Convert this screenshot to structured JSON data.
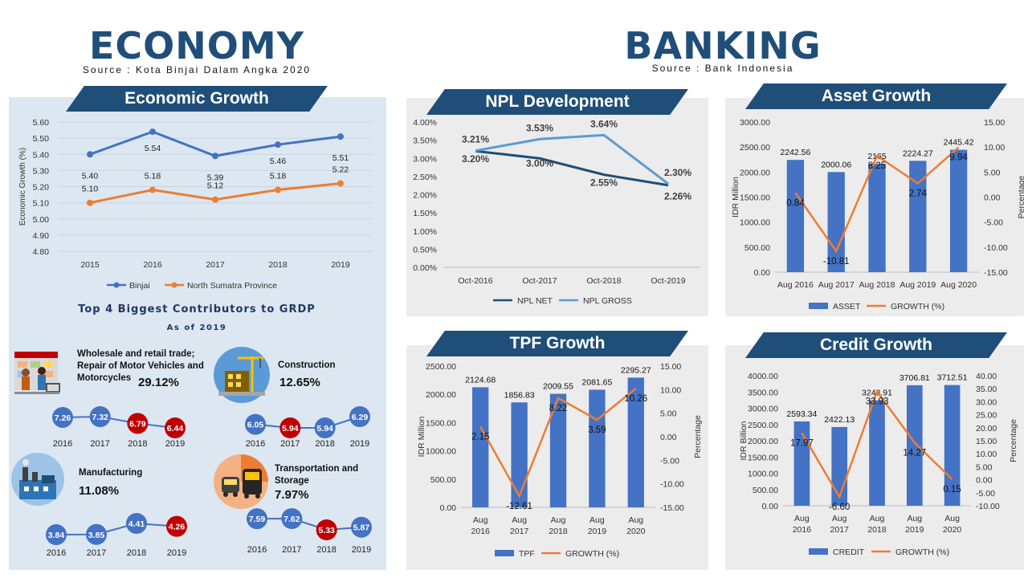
{
  "economy": {
    "title": "ECONOMY",
    "source": "Source : Kota Binjai Dalam Angka 2020"
  },
  "banking": {
    "title": "BANKING",
    "source": "Source : Bank Indonesia"
  },
  "banners": {
    "economic_growth": "Economic Growth",
    "npl": "NPL Development",
    "asset": "Asset Growth",
    "tpf": "TPF Growth",
    "credit": "Credit Growth"
  },
  "grdp": {
    "title": "Top 4 Biggest Contributors to GRDP",
    "subtitle": "As of 2019",
    "contributors": [
      {
        "name": "Wholesale and retail trade; Repair of Motor Vehicles and Motorcycles",
        "pct": "29.12%",
        "icon": "shop-icon",
        "years": [
          "2016",
          "2017",
          "2018",
          "2019"
        ],
        "values": [
          7.26,
          7.32,
          6.79,
          6.44
        ],
        "labels": [
          "7.26",
          "7.32",
          "6.79",
          "6.44"
        ],
        "colors": [
          "#4472c4",
          "#4472c4",
          "#c00000",
          "#c00000"
        ]
      },
      {
        "name": "Construction",
        "pct": "12.65%",
        "icon": "construction-icon",
        "years": [
          "2016",
          "2017",
          "2018",
          "2019"
        ],
        "values": [
          6.05,
          5.94,
          5.94,
          6.29
        ],
        "labels": [
          "6.05",
          "5.94",
          "5.94",
          "6.29"
        ],
        "colors": [
          "#4472c4",
          "#c00000",
          "#4472c4",
          "#4472c4"
        ]
      },
      {
        "name": "Manufacturing",
        "pct": "11.08%",
        "icon": "factory-icon",
        "years": [
          "2016",
          "2017",
          "2018",
          "2019"
        ],
        "values": [
          3.84,
          3.85,
          4.41,
          4.26
        ],
        "labels": [
          "3.84",
          "3.85",
          "4.41",
          "4.26"
        ],
        "colors": [
          "#4472c4",
          "#4472c4",
          "#4472c4",
          "#c00000"
        ]
      },
      {
        "name": "Transportation and Storage",
        "pct": "7.97%",
        "icon": "transport-icon",
        "years": [
          "2016",
          "2017",
          "2018",
          "2019"
        ],
        "values": [
          7.59,
          7.62,
          5.33,
          5.87
        ],
        "labels": [
          "7.59",
          "7.62",
          "5.33",
          "5.87"
        ],
        "colors": [
          "#4472c4",
          "#4472c4",
          "#c00000",
          "#4472c4"
        ]
      }
    ]
  },
  "colors": {
    "navy": "#1f4e79",
    "blue": "#4472c4",
    "orange": "#ed7d31",
    "red": "#c00000",
    "light_blue": "#5b9bd5"
  },
  "chart_data": [
    {
      "id": "economic-growth",
      "type": "line",
      "x": [
        "2015",
        "2016",
        "2017",
        "2018",
        "2019"
      ],
      "ylabel": "Economic Growth (%)",
      "ylim": [
        4.8,
        5.6
      ],
      "yticks": [
        "4.80",
        "4.90",
        "5.00",
        "5.10",
        "5.20",
        "5.30",
        "5.40",
        "5.50",
        "5.60"
      ],
      "series": [
        {
          "name": "Binjai",
          "values": [
            5.4,
            5.54,
            5.39,
            5.46,
            5.51
          ],
          "labels": [
            "5.40",
            "5.54",
            "5.39",
            "5.46",
            "5.51"
          ],
          "color": "#4472c4"
        },
        {
          "name": "North Sumatra Province",
          "values": [
            5.1,
            5.18,
            5.12,
            5.18,
            5.22
          ],
          "labels": [
            "5.10",
            "5.18",
            "5.12",
            "5.18",
            "5.22"
          ],
          "color": "#ed7d31"
        }
      ],
      "legend": "bottom",
      "grid": true
    },
    {
      "id": "npl",
      "type": "line",
      "x": [
        "Oct-2016",
        "Oct-2017",
        "Oct-2018",
        "Oct-2019"
      ],
      "ylim": [
        0,
        4
      ],
      "yticks": [
        "0.00%",
        "0.50%",
        "1.00%",
        "1.50%",
        "2.00%",
        "2.50%",
        "3.00%",
        "3.50%",
        "4.00%"
      ],
      "series": [
        {
          "name": "NPL NET",
          "values": [
            3.2,
            3.0,
            2.55,
            2.26
          ],
          "labels": [
            "3.20%",
            "3.00%",
            "2.55%",
            "2.26%"
          ],
          "color": "#1f4e79"
        },
        {
          "name": "NPL GROSS",
          "values": [
            3.21,
            3.53,
            3.64,
            2.3
          ],
          "labels": [
            "3.21%",
            "3.53%",
            "3.64%",
            "2.30%"
          ],
          "color": "#5b9bd5"
        }
      ],
      "legend": "bottom"
    },
    {
      "id": "asset",
      "type": "bar",
      "categories": [
        "Aug 2016",
        "Aug 2017",
        "Aug 2018",
        "Aug 2019",
        "Aug 2020"
      ],
      "ylabel": "IDR Million",
      "y2label": "Percentage",
      "ylim": [
        0,
        3000
      ],
      "y2lim": [
        -15,
        15
      ],
      "yticks": [
        "0.00",
        "500.00",
        "1000.00",
        "1500.00",
        "2000.00",
        "2500.00",
        "3000.00"
      ],
      "y2ticks": [
        "-15.00",
        "-10.00",
        "-5.00",
        "0.00",
        "5.00",
        "10.00",
        "15.00"
      ],
      "series": [
        {
          "name": "ASSET",
          "values": [
            2242.56,
            2000.06,
            2165,
            2224.27,
            2445.42
          ],
          "labels": [
            "2242.56",
            "2000.06",
            "2165",
            "2224.27",
            "2445.42"
          ],
          "color": "#4472c4"
        },
        {
          "name": "GROWTH (%)",
          "values": [
            0.84,
            -10.81,
            8.25,
            2.74,
            9.94
          ],
          "labels": [
            "0.84",
            "-10.81",
            "8.25",
            "2.74",
            "9.94"
          ],
          "color": "#ed7d31"
        }
      ],
      "legend": "bottom"
    },
    {
      "id": "tpf",
      "type": "bar",
      "categories": [
        "Aug 2016",
        "Aug 2017",
        "Aug 2018",
        "Aug 2019",
        "Aug 2020"
      ],
      "ylabel": "IDR Million",
      "y2label": "Percentage",
      "ylim": [
        0,
        2500
      ],
      "y2lim": [
        -15,
        15
      ],
      "yticks": [
        "0.00",
        "500.00",
        "1000.00",
        "1500.00",
        "2000.00",
        "2500.00"
      ],
      "y2ticks": [
        "-15.00",
        "-10.00",
        "-5.00",
        "0.00",
        "5.00",
        "10.00",
        "15.00"
      ],
      "series": [
        {
          "name": "TPF",
          "values": [
            2124.68,
            1856.83,
            2009.55,
            2081.65,
            2295.27
          ],
          "labels": [
            "2124.68",
            "1856.83",
            "2009.55",
            "2081.65",
            "2295.27"
          ],
          "color": "#4472c4"
        },
        {
          "name": "GROWTH (%)",
          "values": [
            2.15,
            -12.61,
            8.22,
            3.59,
            10.26
          ],
          "labels": [
            "2.15",
            "-12.61",
            "8.22",
            "3.59",
            "10.26"
          ],
          "color": "#ed7d31"
        }
      ],
      "legend": "bottom"
    },
    {
      "id": "credit",
      "type": "bar",
      "categories": [
        "Aug 2016",
        "Aug 2017",
        "Aug 2018",
        "Aug 2019",
        "Aug 2020"
      ],
      "ylabel": "IDR Billion",
      "y2label": "Percentage",
      "ylim": [
        0,
        4000
      ],
      "y2lim": [
        -10,
        40
      ],
      "yticks": [
        "0.00",
        "500.00",
        "1000.00",
        "1500.00",
        "2000.00",
        "2500.00",
        "3000.00",
        "3500.00",
        "4000.00"
      ],
      "y2ticks": [
        "-10.00",
        "-5.00",
        "0.00",
        "5.00",
        "10.00",
        "15.00",
        "20.00",
        "25.00",
        "30.00",
        "35.00",
        "40.00"
      ],
      "series": [
        {
          "name": "CREDIT",
          "values": [
            2593.34,
            2422.13,
            3243.91,
            3706.81,
            3712.51
          ],
          "labels": [
            "2593.34",
            "2422.13",
            "3243.91",
            "3706.81",
            "3712.51"
          ],
          "color": "#4472c4"
        },
        {
          "name": "GROWTH (%)",
          "values": [
            17.97,
            -6.6,
            33.93,
            14.27,
            0.15
          ],
          "labels": [
            "17.97",
            "-6.60",
            "33.93",
            "14.27",
            "0.15"
          ],
          "color": "#ed7d31"
        }
      ],
      "legend": "bottom"
    }
  ]
}
